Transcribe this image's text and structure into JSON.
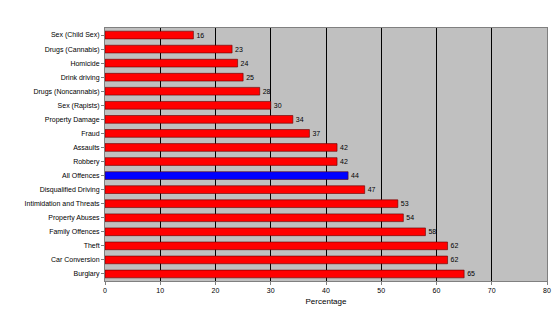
{
  "chart_data": {
    "type": "bar",
    "orientation": "horizontal",
    "categories": [
      "Sex (Child Sex)",
      "Drugs (Cannabis)",
      "Homicide",
      "Drink driving",
      "Drugs (Noncannabis)",
      "Sex (Rapists)",
      "Property Damage",
      "Fraud",
      "Assaults",
      "Robbery",
      "All Offences",
      "Disqualified Driving",
      "Intimidation and Threats",
      "Property Abuses",
      "Family Offences",
      "Theft",
      "Car Conversion",
      "Burglary"
    ],
    "values": [
      16,
      23,
      24,
      25,
      28,
      30,
      34,
      37,
      42,
      42,
      44,
      47,
      53,
      54,
      58,
      62,
      62,
      65
    ],
    "colors": [
      "#ff0000",
      "#ff0000",
      "#ff0000",
      "#ff0000",
      "#ff0000",
      "#ff0000",
      "#ff0000",
      "#ff0000",
      "#ff0000",
      "#ff0000",
      "#0000ff",
      "#ff0000",
      "#ff0000",
      "#ff0000",
      "#ff0000",
      "#ff0000",
      "#ff0000",
      "#ff0000"
    ],
    "x_label": "Percentage",
    "xlim": [
      0,
      80
    ],
    "xticks": [
      0,
      10,
      20,
      30,
      40,
      50,
      60,
      70,
      80
    ],
    "grid": true,
    "data_labels": true
  }
}
